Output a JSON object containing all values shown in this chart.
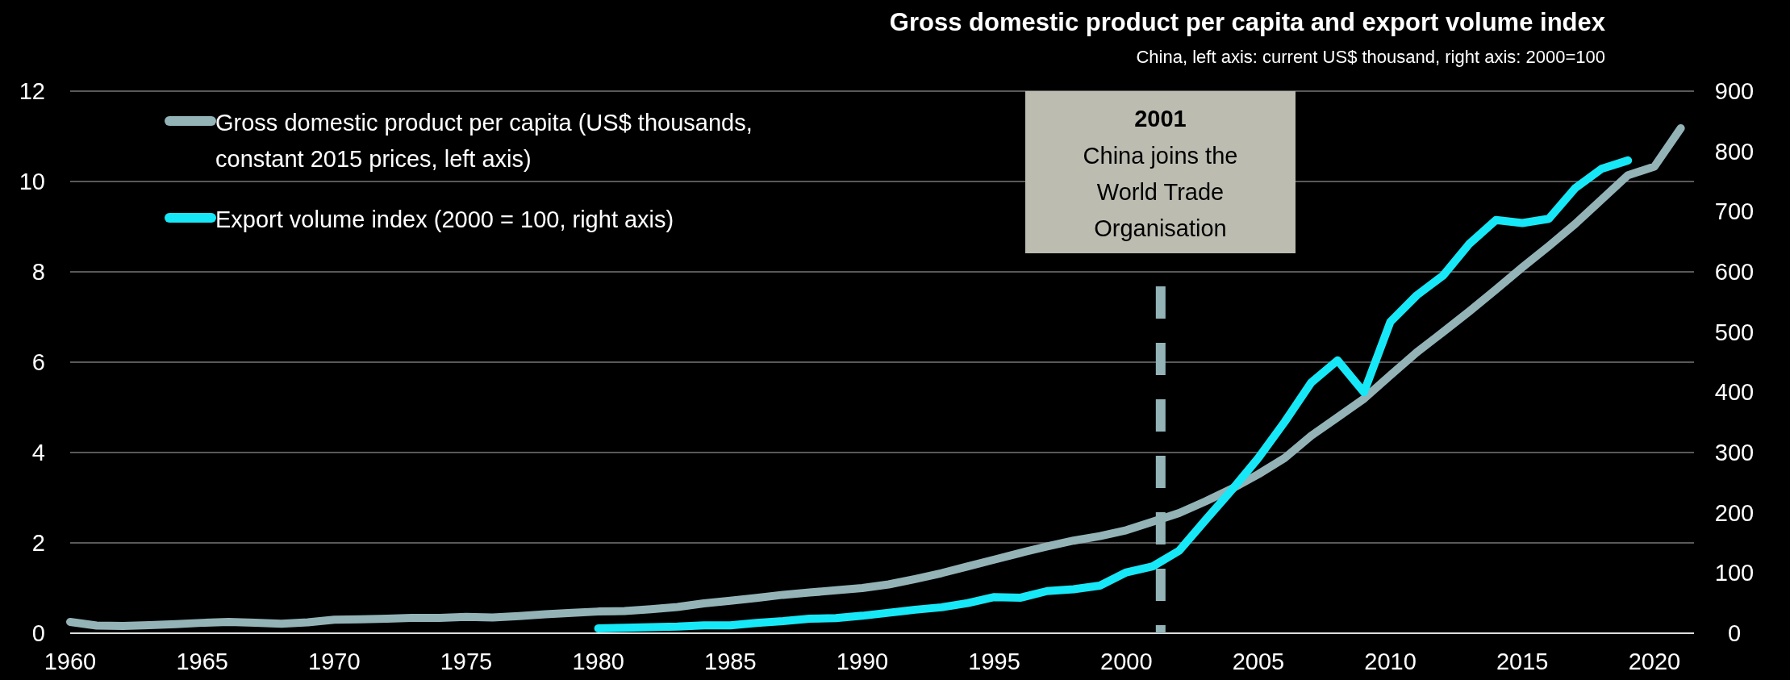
{
  "chart_data": {
    "type": "line",
    "title": "Gross domestic product per capita and export volume index",
    "subtitle": "China, left axis: current US$ thousand, right axis: 2000=100",
    "x": [
      1960,
      1961,
      1962,
      1963,
      1964,
      1965,
      1966,
      1967,
      1968,
      1969,
      1970,
      1971,
      1972,
      1973,
      1974,
      1975,
      1976,
      1977,
      1978,
      1979,
      1980,
      1981,
      1982,
      1983,
      1984,
      1985,
      1986,
      1987,
      1988,
      1989,
      1990,
      1991,
      1992,
      1993,
      1994,
      1995,
      1996,
      1997,
      1998,
      1999,
      2000,
      2001,
      2002,
      2003,
      2004,
      2005,
      2006,
      2007,
      2008,
      2009,
      2010,
      2011,
      2012,
      2013,
      2014,
      2015,
      2016,
      2017,
      2018,
      2019,
      2020,
      2021
    ],
    "series": [
      {
        "name": "Gross domestic product per capita (US$ thousands, constant 2015 prices, left axis)",
        "color": "#93b3b7",
        "values": [
          0.25,
          0.17,
          0.16,
          0.18,
          0.2,
          0.23,
          0.25,
          0.23,
          0.21,
          0.24,
          0.3,
          0.31,
          0.32,
          0.34,
          0.34,
          0.36,
          0.35,
          0.38,
          0.42,
          0.45,
          0.48,
          0.49,
          0.53,
          0.58,
          0.66,
          0.72,
          0.78,
          0.85,
          0.9,
          0.95,
          1.0,
          1.08,
          1.2,
          1.33,
          1.48,
          1.63,
          1.78,
          1.92,
          2.05,
          2.15,
          2.28,
          2.47,
          2.66,
          2.92,
          3.2,
          3.52,
          3.88,
          4.37,
          4.78,
          5.19,
          5.71,
          6.22,
          6.67,
          7.13,
          7.61,
          8.1,
          8.57,
          9.06,
          9.6,
          10.14,
          10.33,
          11.18
        ]
      },
      {
        "name": "Export volume index (2000 = 100, right axis)",
        "color": "#17e8f7",
        "axis": "y2",
        "values": [
          null,
          null,
          null,
          null,
          null,
          null,
          null,
          null,
          null,
          null,
          null,
          null,
          null,
          null,
          null,
          null,
          null,
          null,
          null,
          null,
          8,
          9,
          10,
          11,
          13,
          13,
          17,
          20,
          24,
          25,
          29,
          34,
          39,
          43,
          50,
          60,
          59,
          70,
          73,
          79,
          101,
          111,
          137,
          188,
          238,
          291,
          351,
          416,
          453,
          400,
          517,
          561,
          594,
          647,
          686,
          681,
          688,
          739,
          771,
          785,
          null,
          null
        ]
      }
    ],
    "xlim": [
      1960,
      2021.5
    ],
    "xticks": [
      1960,
      1965,
      1970,
      1975,
      1980,
      1985,
      1990,
      1995,
      2000,
      2005,
      2010,
      2015,
      2020
    ],
    "ylim": [
      0,
      12
    ],
    "yticks": [
      0,
      2,
      4,
      6,
      8,
      10,
      12
    ],
    "y2lim": [
      0,
      900
    ],
    "y2ticks": [
      0,
      100,
      200,
      300,
      400,
      500,
      600,
      700,
      800,
      900
    ],
    "grid": "y",
    "legend": "top left",
    "ref_lines": [
      {
        "axis": "x",
        "value": 2001.3,
        "color": "#93b3b7",
        "line_style": "dashed"
      }
    ],
    "annotations": [
      "2001",
      "China joins the World Trade Organisation"
    ]
  }
}
